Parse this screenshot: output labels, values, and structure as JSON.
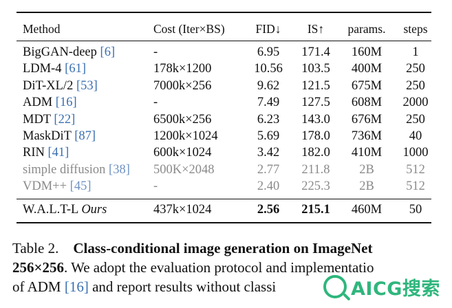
{
  "table": {
    "headers": [
      "Method",
      "Cost (Iter×BS)",
      "FID↓",
      "IS↑",
      "params.",
      "steps"
    ],
    "rows": [
      {
        "method": "BigGAN-deep ",
        "ref": "[6]",
        "ours_note": "",
        "cost": "-",
        "fid": "6.95",
        "is": "171.4",
        "params": "160M",
        "steps": "1"
      },
      {
        "method": "LDM-4 ",
        "ref": "[61]",
        "ours_note": "",
        "cost": "178k×1200",
        "fid": "10.56",
        "is": "103.5",
        "params": "400M",
        "steps": "250"
      },
      {
        "method": "DiT-XL/2 ",
        "ref": "[53]",
        "ours_note": "",
        "cost": "7000k×256",
        "fid": "9.62",
        "is": "121.5",
        "params": "675M",
        "steps": "250"
      },
      {
        "method": "ADM ",
        "ref": "[16]",
        "ours_note": "",
        "cost": "-",
        "fid": "7.49",
        "is": "127.5",
        "params": "608M",
        "steps": "2000"
      },
      {
        "method": "MDT ",
        "ref": "[22]",
        "ours_note": "",
        "cost": "6500k×256",
        "fid": "6.23",
        "is": "143.0",
        "params": "676M",
        "steps": "250"
      },
      {
        "method": "MaskDiT ",
        "ref": "[87]",
        "ours_note": "",
        "cost": "1200k×1024",
        "fid": "5.69",
        "is": "178.0",
        "params": "736M",
        "steps": "40"
      },
      {
        "method": "RIN ",
        "ref": "[41]",
        "ours_note": "",
        "cost": "600k×1024",
        "fid": "3.42",
        "is": "182.0",
        "params": "410M",
        "steps": "1000"
      },
      {
        "method": "simple diffusion ",
        "ref": "[38]",
        "ours_note": "",
        "cost": "500K×2048",
        "fid": "2.77",
        "is": "211.8",
        "params": "2B",
        "steps": "512"
      },
      {
        "method": "VDM++ ",
        "ref": "[45]",
        "ours_note": "",
        "cost": "-",
        "fid": "2.40",
        "is": "225.3",
        "params": "2B",
        "steps": "512"
      }
    ],
    "ours": {
      "method": "W.A.L.T-L ",
      "note": "Ours",
      "cost": "437k×1024",
      "fid": "2.56",
      "is": "215.1",
      "params": "460M",
      "steps": "50"
    }
  },
  "caption": {
    "label": "Table 2.",
    "title_line1": "Class-conditional image generation on ImageNet",
    "title_line2": "256×256",
    "text_line2": ". We adopt the evaluation protocol a",
    "text_line2_tail": "nd implementatio",
    "text_line3_a": "of ADM ",
    "text_line3_ref": "[16]",
    "text_line3_b": " and report results without classi"
  },
  "watermark": {
    "text": "AICG搜索"
  },
  "colors": {
    "ref_link": "#3a6fb0",
    "muted_row": "#8a8a8a",
    "watermark": "#2fb67c"
  }
}
